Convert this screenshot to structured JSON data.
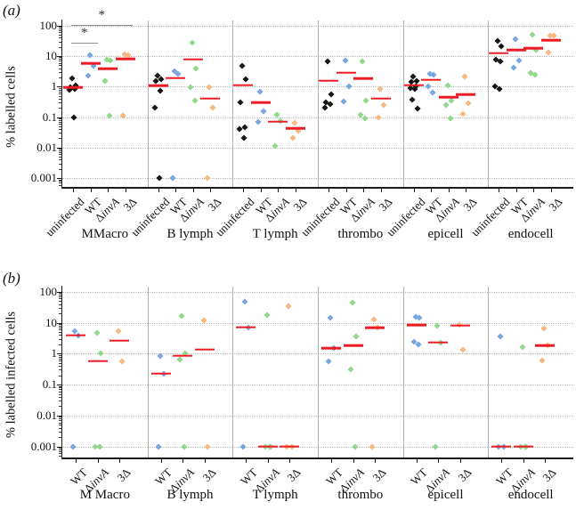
{
  "figure": {
    "panel_a_label": "(a)",
    "panel_b_label": "(b)",
    "colors": {
      "uninfected": "#161616",
      "WT": "#78a7e0",
      "ΔinvA": "#90d88c",
      "3Δ": "#f6ba80",
      "median_line": "#ed1c24"
    }
  },
  "chart_data": [
    {
      "type": "scatter",
      "panel": "a",
      "ylabel": "% labelled cells",
      "yticks": [
        "100",
        "10",
        "1",
        "0.1",
        "0.01",
        "0.001"
      ],
      "ylim": [
        0.001,
        100
      ],
      "scale": "log",
      "grid": "dotted horizontal at decades",
      "conditions": [
        "uninfected",
        "WT",
        "ΔinvA",
        "3Δ"
      ],
      "annotations": [
        {
          "label": "*",
          "group": 0,
          "from": 0,
          "to": 1,
          "tier": 1
        },
        {
          "label": "*",
          "group": 0,
          "from": 0,
          "to": 3,
          "tier": 2
        }
      ],
      "groups": [
        {
          "label": "MMacro",
          "series": [
            {
              "condition": "uninfected",
              "points": [
                1.8,
                1.05,
                0.95,
                0.85,
                0.78,
                0.1
              ],
              "line": 0.92
            },
            {
              "condition": "WT",
              "points": [
                10.5,
                4.9,
                2.2
              ],
              "line": 5.8
            },
            {
              "condition": "ΔinvA",
              "points": [
                7.5,
                7.0,
                1.5,
                0.11
              ],
              "line": 3.9
            },
            {
              "condition": "3Δ",
              "points": [
                11,
                10.5,
                0.11
              ],
              "line": 8.0
            }
          ]
        },
        {
          "label": "B lymph",
          "series": [
            {
              "condition": "uninfected",
              "points": [
                2.2,
                1.75,
                1.5,
                0.73,
                0.2,
                0.001
              ],
              "line": 1.05
            },
            {
              "condition": "WT",
              "points": [
                3.1,
                2.6,
                0.001
              ],
              "line": 1.9
            },
            {
              "condition": "ΔinvA",
              "points": [
                28,
                3.8,
                0.97,
                0.34
              ],
              "line": 7.8
            },
            {
              "condition": "3Δ",
              "points": [
                0.97,
                0.2,
                0.001
              ],
              "line": 0.4
            }
          ]
        },
        {
          "label": "T lymph",
          "series": [
            {
              "condition": "uninfected",
              "points": [
                4.7,
                1.7,
                0.31,
                0.046,
                0.04,
                0.02
              ],
              "line": 1.1
            },
            {
              "condition": "WT",
              "points": [
                0.7,
                0.15,
                0.067
              ],
              "line": 0.3
            },
            {
              "condition": "ΔinvA",
              "points": [
                0.12,
                0.075,
                0.011
              ],
              "line": 0.07
            },
            {
              "condition": "3Δ",
              "points": [
                0.066,
                0.036,
                0.021
              ],
              "line": 0.042
            }
          ]
        },
        {
          "label": "thrombo",
          "series": [
            {
              "condition": "uninfected",
              "points": [
                6.6,
                0.55,
                0.3,
                0.27,
                0.2
              ],
              "line": 1.55
            },
            {
              "condition": "WT",
              "points": [
                7.2,
                1.0,
                0.32
              ],
              "line": 2.8
            },
            {
              "condition": "ΔinvA",
              "points": [
                6.5,
                0.35,
                0.12,
                0.09
              ],
              "line": 1.8
            },
            {
              "condition": "3Δ",
              "points": [
                0.82,
                0.24,
                0.095
              ],
              "line": 0.4
            }
          ]
        },
        {
          "label": "epicell",
          "series": [
            {
              "condition": "uninfected",
              "points": [
                2.1,
                1.5,
                1.4,
                1.0,
                0.9,
                0.82,
                0.37,
                0.19
              ],
              "line": 1.1
            },
            {
              "condition": "WT",
              "points": [
                2.6,
                2.4,
                1.0,
                0.63
              ],
              "line": 1.65
            },
            {
              "condition": "ΔinvA",
              "points": [
                1.05,
                0.35,
                0.24,
                0.09
              ],
              "line": 0.45
            },
            {
              "condition": "3Δ",
              "points": [
                2.1,
                0.28,
                0.13
              ],
              "line": 0.55
            }
          ]
        },
        {
          "label": "endocell",
          "series": [
            {
              "condition": "uninfected",
              "points": [
                32,
                21,
                7.8,
                6.7,
                1.0,
                0.85
              ],
              "line": 12.4
            },
            {
              "condition": "WT",
              "points": [
                35,
                7.1,
                4.1
              ],
              "line": 15.5
            },
            {
              "condition": "ΔinvA",
              "points": [
                50,
                16,
                2.8,
                2.35
              ],
              "line": 18
            },
            {
              "condition": "3Δ",
              "points": [
                46,
                45,
                13
              ],
              "line": 33
            }
          ]
        }
      ]
    },
    {
      "type": "scatter",
      "panel": "b",
      "ylabel": "% labelled infected cells",
      "yticks": [
        "100",
        "10",
        "1",
        "0.1",
        "0.01",
        "0.001"
      ],
      "ylim": [
        0.001,
        100
      ],
      "scale": "log",
      "grid": "dotted horizontal at decades",
      "conditions": [
        "WT",
        "ΔinvA",
        "3Δ"
      ],
      "annotations": [],
      "groups": [
        {
          "label": "M Macro",
          "series": [
            {
              "condition": "WT",
              "points": [
                5.4,
                3.9,
                0.001
              ],
              "line": 3.9
            },
            {
              "condition": "ΔinvA",
              "points": [
                4.8,
                1.05,
                0.001,
                0.001
              ],
              "line": 0.58
            },
            {
              "condition": "3Δ",
              "points": [
                5.2,
                0.58
              ],
              "line": 2.6
            }
          ]
        },
        {
          "label": "B lymph",
          "series": [
            {
              "condition": "WT",
              "points": [
                0.86,
                0.23,
                0.001
              ],
              "line": 0.23
            },
            {
              "condition": "ΔinvA",
              "points": [
                16,
                1.05,
                0.65,
                0.001
              ],
              "line": 0.86
            },
            {
              "condition": "3Δ",
              "points": [
                12,
                0.001
              ],
              "line": 1.35
            }
          ]
        },
        {
          "label": "T lymph",
          "series": [
            {
              "condition": "WT",
              "points": [
                47,
                7.1,
                0.001
              ],
              "line": 7.1
            },
            {
              "condition": "ΔinvA",
              "points": [
                17.5,
                0.001,
                0.001,
                0.001
              ],
              "line": 0.001
            },
            {
              "condition": "3Δ",
              "points": [
                33,
                0.001,
                0.001
              ],
              "line": 0.001
            }
          ]
        },
        {
          "label": "thrombo",
          "series": [
            {
              "condition": "WT",
              "points": [
                14,
                1.5,
                0.58
              ],
              "line": 1.5
            },
            {
              "condition": "ΔinvA",
              "points": [
                44,
                3.6,
                0.32,
                0.001
              ],
              "line": 1.8
            },
            {
              "condition": "3Δ",
              "points": [
                12.3,
                6.8,
                0.001
              ],
              "line": 6.8
            }
          ]
        },
        {
          "label": "epicell",
          "series": [
            {
              "condition": "WT",
              "points": [
                15.5,
                14,
                2.4,
                2.0
              ],
              "line": 8.2
            },
            {
              "condition": "ΔinvA",
              "points": [
                7.8,
                2.3,
                0.001
              ],
              "line": 2.3
            },
            {
              "condition": "3Δ",
              "points": [
                8.5,
                1.3
              ],
              "line": 8.0
            }
          ]
        },
        {
          "label": "endocell",
          "series": [
            {
              "condition": "WT",
              "points": [
                3.7,
                0.001,
                0.001
              ],
              "line": 0.001
            },
            {
              "condition": "ΔinvA",
              "points": [
                1.6,
                0.001,
                0.001,
                0.001
              ],
              "line": 0.001
            },
            {
              "condition": "3Δ",
              "points": [
                6.3,
                1.8,
                0.61
              ],
              "line": 1.8
            }
          ]
        }
      ]
    }
  ]
}
